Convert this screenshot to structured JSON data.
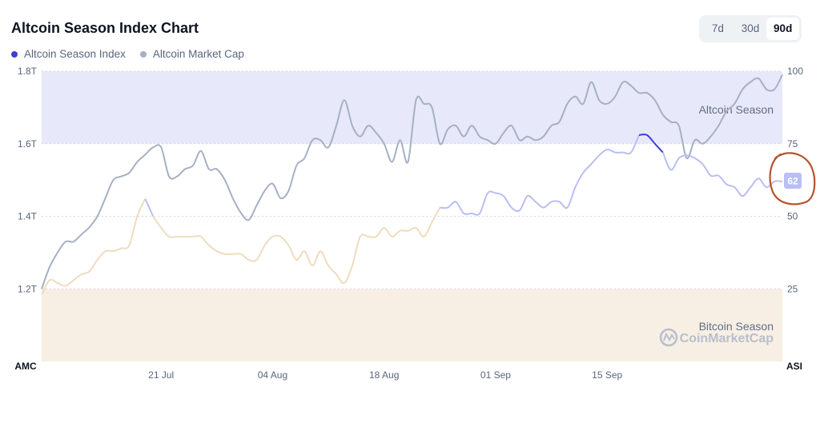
{
  "header": {
    "title": "Altcoin Season Index Chart",
    "legend": [
      {
        "label": "Altcoin Season Index",
        "color": "#3b3fd6"
      },
      {
        "label": "Altcoin Market Cap",
        "color": "#a6b0c3"
      }
    ],
    "ranges": [
      "7d",
      "30d",
      "90d"
    ],
    "active_range": "90d"
  },
  "chart_data": {
    "type": "line",
    "left_axis": {
      "name": "AMC",
      "ticks": [
        "1.2T",
        "1.4T",
        "1.6T",
        "1.8T"
      ],
      "tick_values": [
        1.2,
        1.4,
        1.6,
        1.8
      ],
      "range": [
        1.0,
        1.8
      ]
    },
    "right_axis": {
      "name": "ASI",
      "ticks": [
        "25",
        "50",
        "75",
        "100"
      ],
      "tick_values": [
        25,
        50,
        75,
        100
      ],
      "range": [
        0,
        100
      ]
    },
    "x_ticks": [
      {
        "label": "21 Jul",
        "day": 15
      },
      {
        "label": "04 Aug",
        "day": 29
      },
      {
        "label": "18 Aug",
        "day": 43
      },
      {
        "label": "01 Sep",
        "day": 57
      },
      {
        "label": "15 Sep",
        "day": 71
      }
    ],
    "zones": [
      {
        "label": "Altcoin Season",
        "from": 75,
        "to": 100,
        "color": "#e8e8fb"
      },
      {
        "label": "Bitcoin Season",
        "from": 0,
        "to": 25,
        "color": "#f7efe4"
      }
    ],
    "series": [
      {
        "name": "Altcoin Market Cap",
        "color": "#a6b0c3",
        "axis": "left",
        "values": [
          1.2,
          1.26,
          1.3,
          1.33,
          1.33,
          1.35,
          1.37,
          1.4,
          1.45,
          1.5,
          1.51,
          1.52,
          1.55,
          1.57,
          1.59,
          1.59,
          1.51,
          1.51,
          1.53,
          1.54,
          1.58,
          1.53,
          1.53,
          1.5,
          1.45,
          1.41,
          1.39,
          1.43,
          1.47,
          1.49,
          1.45,
          1.47,
          1.54,
          1.56,
          1.61,
          1.61,
          1.59,
          1.65,
          1.72,
          1.65,
          1.62,
          1.65,
          1.63,
          1.6,
          1.55,
          1.61,
          1.55,
          1.72,
          1.71,
          1.7,
          1.6,
          1.64,
          1.65,
          1.62,
          1.65,
          1.62,
          1.61,
          1.6,
          1.63,
          1.65,
          1.61,
          1.62,
          1.61,
          1.62,
          1.65,
          1.66,
          1.71,
          1.73,
          1.71,
          1.77,
          1.72,
          1.71,
          1.73,
          1.77,
          1.76,
          1.74,
          1.74,
          1.72,
          1.68,
          1.66,
          1.65,
          1.56,
          1.61,
          1.6,
          1.62,
          1.65,
          1.69,
          1.71,
          1.75,
          1.77,
          1.78,
          1.75,
          1.75,
          1.79
        ]
      },
      {
        "name": "Altcoin Season Index",
        "axis": "right",
        "values": [
          23,
          28,
          27,
          26,
          28,
          30,
          31,
          35,
          38,
          38,
          39,
          40,
          50,
          56,
          50,
          46,
          43,
          43,
          43,
          43,
          43,
          40,
          38,
          37,
          37,
          37,
          35,
          35,
          40,
          43,
          43,
          40,
          35,
          38,
          33,
          38,
          33,
          30,
          27,
          33,
          43,
          43,
          43,
          46,
          43,
          45,
          45,
          46,
          43,
          48,
          53,
          53,
          55,
          51,
          51,
          51,
          58,
          58,
          57,
          53,
          52,
          57,
          55,
          53,
          55,
          55,
          53,
          60,
          65,
          68,
          71,
          73,
          72,
          72,
          72,
          78,
          78,
          75,
          72,
          66,
          70,
          71,
          70,
          68,
          64,
          64,
          61,
          60,
          57,
          60,
          63,
          60,
          62,
          62
        ],
        "colors_by_zone": {
          "altcoin": "#3b3fd6",
          "neutral": "#b9bef5",
          "bitcoin": "#efdcbf"
        }
      }
    ],
    "current_value": {
      "label": "62",
      "value": 62,
      "color": "#b9bef5"
    },
    "annotation": {
      "type": "hand-drawn circle",
      "color": "#b5532a"
    }
  },
  "watermark": {
    "text": "CoinMarketCap",
    "icon": "coinmarketcap-logo-icon"
  }
}
